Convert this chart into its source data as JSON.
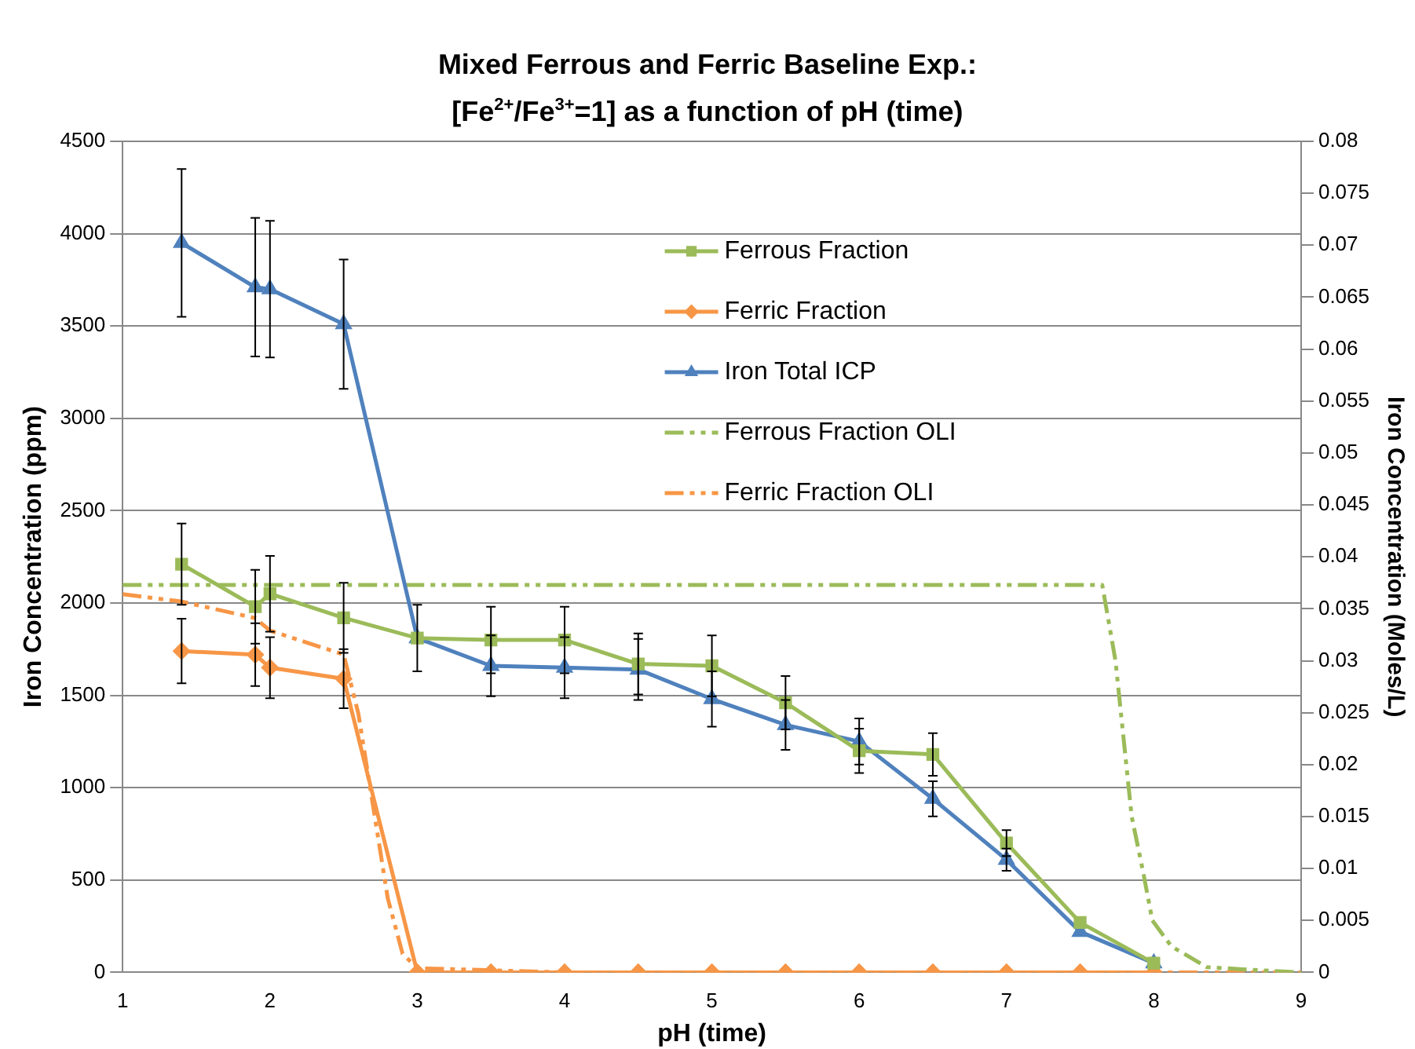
{
  "chart_data": {
    "type": "line",
    "title": "Mixed Ferrous and Ferric Baseline Exp.:",
    "subtitle": "[Fe$^{2+}$/Fe$^{3+}$=1] as a function of pH (time)",
    "xlabel": "pH (time)",
    "ylabel": "Iron Concentration (ppm)",
    "y2label": "Iron Concentration (Moles/L)",
    "xlim": [
      1,
      9
    ],
    "xticks": [
      1,
      2,
      3,
      4,
      5,
      6,
      7,
      8,
      9
    ],
    "ylim": [
      0,
      4500
    ],
    "yticks": [
      0,
      500,
      1000,
      1500,
      2000,
      2500,
      3000,
      3500,
      4000,
      4500
    ],
    "y2lim": [
      0,
      0.08
    ],
    "y2ticks": [
      0,
      0.005,
      0.01,
      0.015,
      0.02,
      0.025,
      0.03,
      0.035,
      0.04,
      0.045,
      0.05,
      0.055,
      0.06,
      0.065,
      0.07,
      0.075,
      0.08
    ],
    "grid": "y",
    "legend": "top right",
    "series": [
      {
        "name": "Ferrous Fraction",
        "color": "#9bbb59",
        "marker": "square",
        "line_style": "solid",
        "x": [
          1.4,
          1.9,
          2,
          2.5,
          3,
          3.5,
          4,
          4.5,
          5,
          5.5,
          6,
          6.5,
          7,
          7.5,
          8
        ],
        "values": [
          2210,
          1980,
          2050,
          1920,
          1810,
          1800,
          1800,
          1670,
          1660,
          1460,
          1200,
          1180,
          700,
          270,
          50
        ],
        "errors": [
          220,
          200,
          205,
          190,
          null,
          180,
          180,
          165,
          165,
          145,
          120,
          115,
          70,
          null,
          null
        ]
      },
      {
        "name": "Ferric Fraction",
        "color": "#f79646",
        "marker": "diamond",
        "line_style": "solid",
        "x": [
          1.4,
          1.9,
          2,
          2.5,
          3,
          3.5,
          4,
          4.5,
          5,
          5.5,
          6,
          6.5,
          7,
          7.5,
          8
        ],
        "values": [
          1740,
          1720,
          1650,
          1590,
          0,
          0,
          0,
          0,
          0,
          0,
          0,
          0,
          0,
          0,
          0
        ],
        "errors": [
          175,
          170,
          165,
          160,
          null,
          null,
          null,
          null,
          null,
          null,
          null,
          null,
          null,
          null,
          null
        ]
      },
      {
        "name": "Iron Total ICP",
        "color": "#4f81bd",
        "marker": "triangle",
        "line_style": "solid",
        "x": [
          1.4,
          1.9,
          2,
          2.5,
          3,
          3.5,
          4,
          4.5,
          5,
          5.5,
          6,
          6.5,
          7,
          7.5,
          8
        ],
        "values": [
          3950,
          3710,
          3700,
          3510,
          1810,
          1660,
          1650,
          1640,
          1480,
          1340,
          1250,
          940,
          610,
          220,
          50
        ],
        "errors": [
          400,
          375,
          370,
          350,
          180,
          165,
          165,
          165,
          150,
          135,
          125,
          95,
          60,
          null,
          null
        ]
      },
      {
        "name": "Ferrous Fraction OLI",
        "color": "#9bbb59",
        "marker": "none",
        "line_style": "dashed",
        "axis": "y2",
        "x": [
          1,
          2,
          3,
          4,
          5,
          6,
          7,
          7.65,
          7.74,
          7.85,
          7.93,
          7.99,
          8.12,
          8.36,
          8.6,
          9
        ],
        "values": [
          0.0373,
          0.0373,
          0.0373,
          0.0373,
          0.0373,
          0.0373,
          0.0373,
          0.0373,
          0.03,
          0.015,
          0.0095,
          0.005,
          0.0025,
          0.0005,
          0.0003,
          0
        ]
      },
      {
        "name": "Ferric Fraction OLI",
        "color": "#f79646",
        "marker": "none",
        "line_style": "dashed",
        "axis": "y2",
        "x": [
          1,
          1.4,
          1.9,
          2,
          2.5,
          2.6,
          2.7,
          2.8,
          2.9,
          3,
          4,
          5,
          6,
          7,
          8,
          9
        ],
        "values": [
          0.0364,
          0.0357,
          0.0341,
          0.0329,
          0.0306,
          0.0249,
          0.016,
          0.0071,
          0.0018,
          0.0004,
          0,
          0,
          0,
          0,
          0,
          0
        ]
      }
    ]
  }
}
